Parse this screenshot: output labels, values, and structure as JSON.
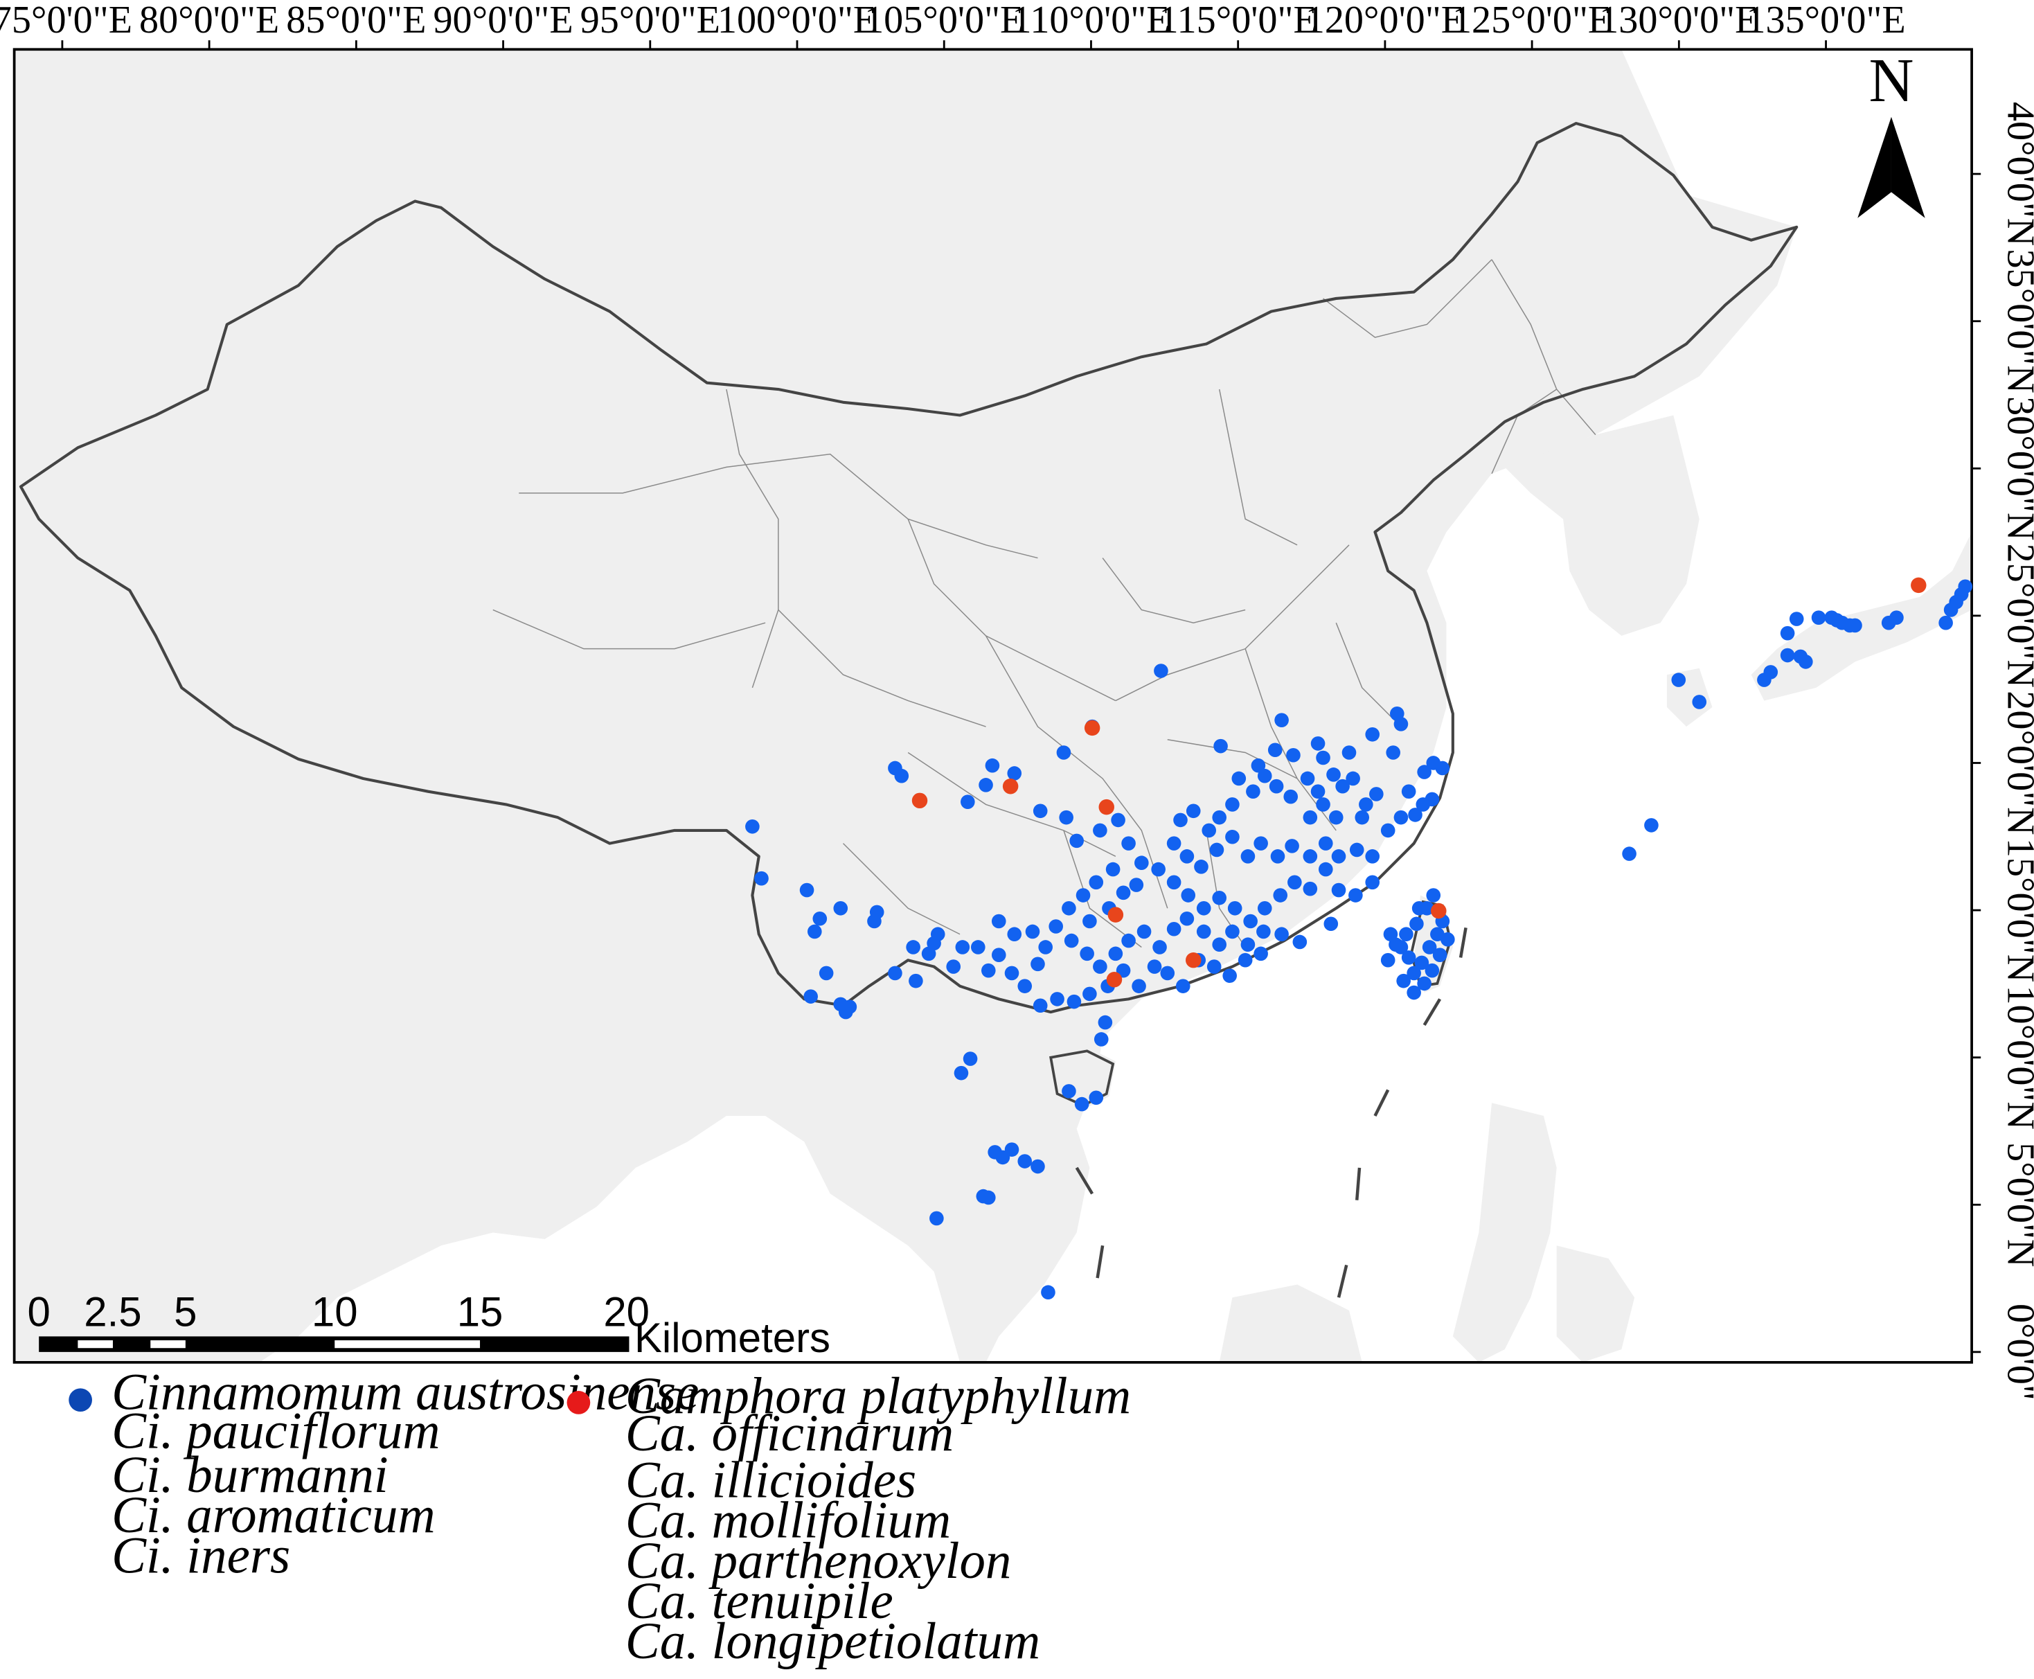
{
  "map": {
    "colors": {
      "land": "#efefef",
      "sea": "#ffffff",
      "china_border": "#444444",
      "province_border": "#8a8a8a",
      "cinnamomum": "#1262f0",
      "camphora": "#e8451c",
      "legend_blue": "#0c47b3",
      "legend_red": "#e61a1a"
    },
    "longitude_labels": [
      "75°0'0\"E",
      "80°0'0\"E",
      "85°0'0\"E",
      "90°0'0\"E",
      "95°0'0\"E",
      "100°0'0\"E",
      "105°0'0\"E",
      "110°0'0\"E",
      "115°0'0\"E",
      "120°0'0\"E",
      "125°0'0\"E",
      "130°0'0\"E",
      "135°0'0\"E"
    ],
    "latitude_labels": [
      "0°0'0\"",
      "5°0'0\"N",
      "10°0'0\"N",
      "15°0'0\"N",
      "20°0'0\"N",
      "25°0'0\"N",
      "30°0'0\"N",
      "35°0'0\"N",
      "40°0'0\"N"
    ],
    "north_arrow": {
      "letter": "N",
      "icon": "north-arrow-icon"
    },
    "scale_bar": {
      "labels": [
        "0",
        "2.5",
        "5",
        "10",
        "15",
        "20"
      ],
      "unit": "Kilometers"
    }
  },
  "legend": {
    "cinnamomum": {
      "marker_icon": "blue-dot-icon",
      "species": [
        "Cinnamomum austrosinense",
        "Ci. pauciflorum",
        "Ci. burmanni",
        "Ci. aromaticum",
        "Ci. iners"
      ]
    },
    "camphora": {
      "marker_icon": "red-dot-icon",
      "species": [
        "Camphora platyphyllum",
        "Ca. officinarum",
        "Ca. illicioides",
        "Ca. mollifolium",
        "Ca. parthenoxylon",
        "Ca. tenuipile",
        "Ca. longipetiolatum"
      ]
    }
  }
}
